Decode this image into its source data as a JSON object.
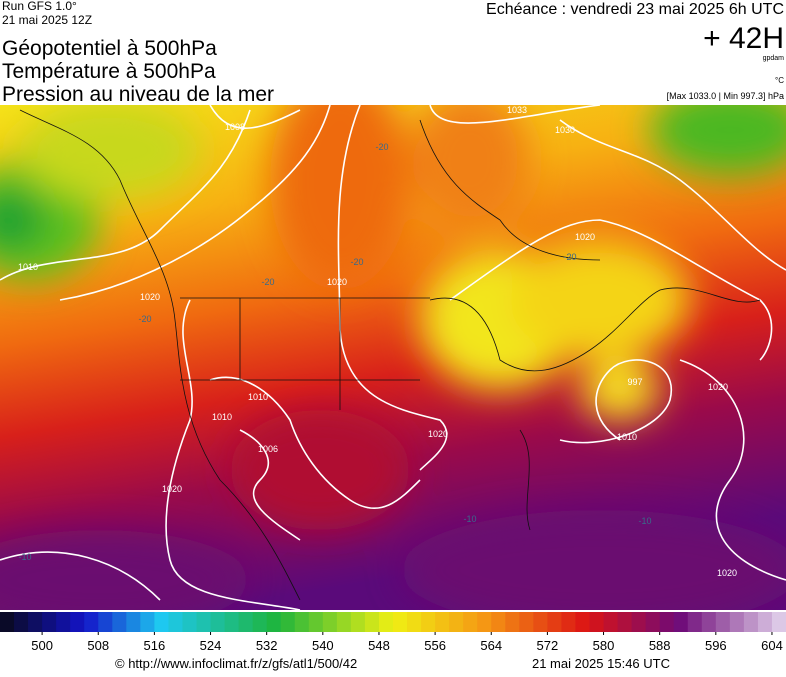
{
  "header": {
    "run": "Run GFS 1.0°",
    "run_date": "21 mai 2025 12Z",
    "titles": [
      "Géopotentiel à 500hPa",
      "Température à 500hPa",
      "Pression au niveau de la mer"
    ],
    "valid": "Echéance : vendredi 23 mai 2025 6h UTC",
    "lead": "+ 42H",
    "unit_geo": "gpdam",
    "unit_temp": "°C",
    "pressure_range": "[Max 1033.0 | Min 997.3] hPa"
  },
  "map": {
    "labels": [
      "1008",
      "1033",
      "1030",
      "1010",
      "1020",
      "-20",
      "-20",
      "-20",
      "-20",
      "1020",
      "1020",
      "-20",
      "1010",
      "1010",
      "1006",
      "1020",
      "997",
      "1010",
      "1020",
      "1020",
      "-10",
      "-10",
      "-10",
      "1020"
    ]
  },
  "colorbar": {
    "range": [
      494,
      606
    ],
    "ticks": [
      500,
      508,
      516,
      524,
      532,
      540,
      548,
      556,
      564,
      572,
      580,
      588,
      596,
      604
    ]
  },
  "footer": {
    "source": "© http://www.infoclimat.fr/z/gfs/atl1/500/42",
    "generated": "21 mai 2025 15:46 UTC"
  }
}
